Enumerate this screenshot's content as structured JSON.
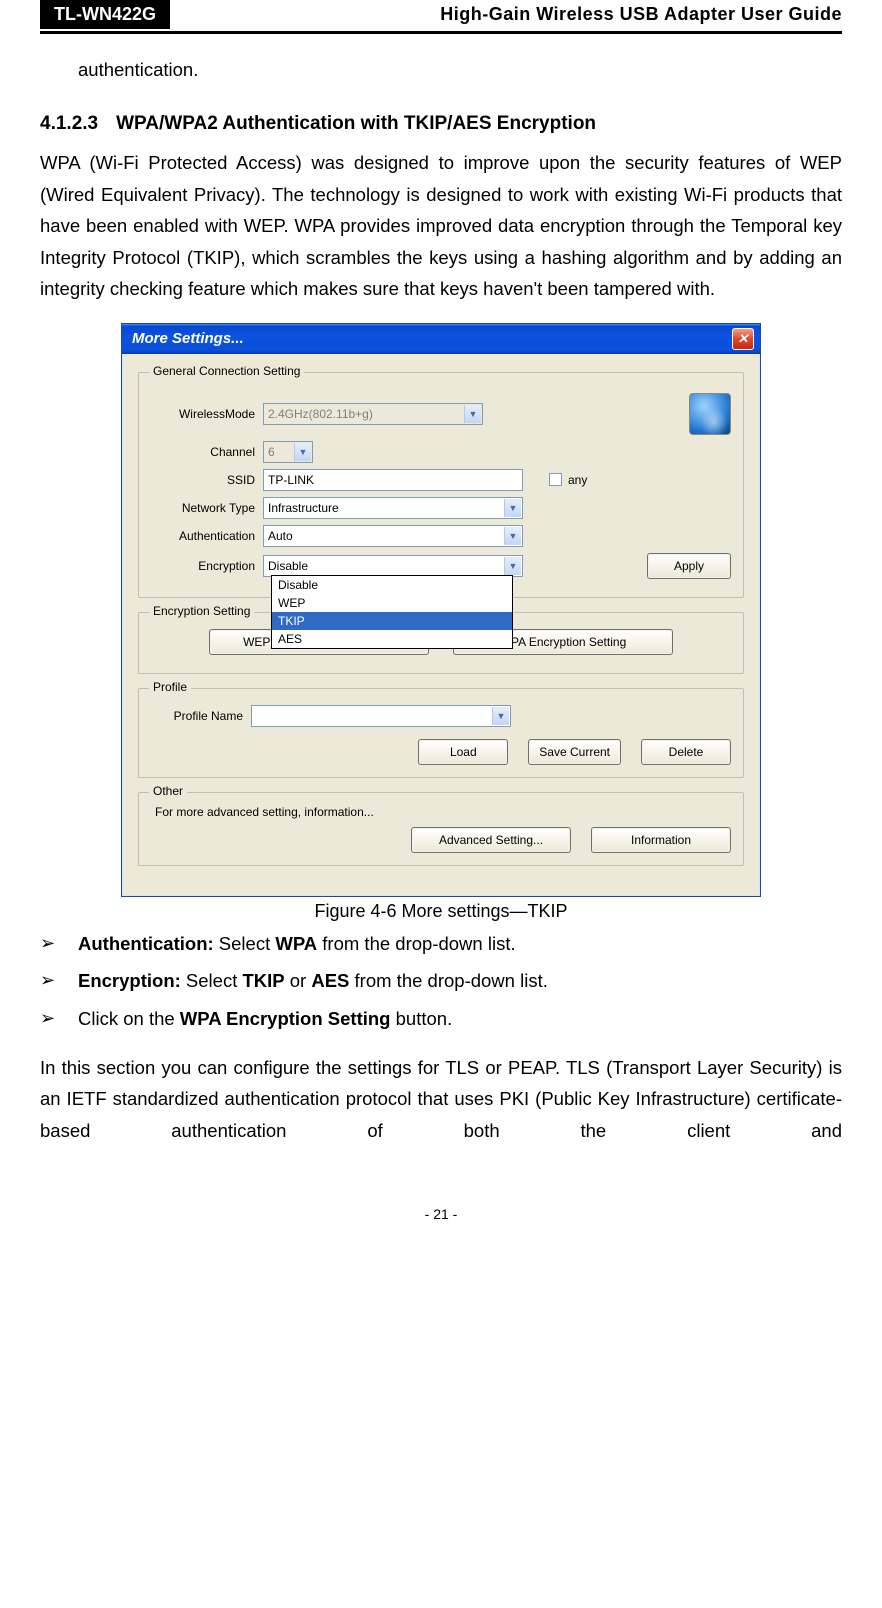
{
  "header": {
    "model": "TL-WN422G",
    "title": "High-Gain Wireless USB Adapter User Guide"
  },
  "intro_trail": "authentication.",
  "section": {
    "number": "4.1.2.3",
    "title": "WPA/WPA2 Authentication with TKIP/AES Encryption"
  },
  "para1": "WPA (Wi-Fi Protected Access) was designed to improve upon the security features of WEP (Wired Equivalent Privacy). The technology is designed to work with existing Wi-Fi products that have been enabled with WEP. WPA provides improved data encryption through the Temporal key Integrity Protocol (TKIP), which scrambles the keys using a hashing algorithm and by adding an integrity checking feature which makes sure that keys haven't been tampered with.",
  "dialog": {
    "title": "More Settings...",
    "close_glyph": "✕",
    "groups": {
      "general": {
        "legend": "General Connection Setting",
        "wireless_mode_label": "WirelessMode",
        "wireless_mode_value": "2.4GHz(802.11b+g)",
        "channel_label": "Channel",
        "channel_value": "6",
        "ssid_label": "SSID",
        "ssid_value": "TP-LINK",
        "any_label": "any",
        "network_type_label": "Network Type",
        "network_type_value": "Infrastructure",
        "authentication_label": "Authentication",
        "authentication_value": "Auto",
        "encryption_label": "Encryption",
        "encryption_value": "Disable",
        "encryption_options": [
          "Disable",
          "WEP",
          "TKIP",
          "AES"
        ],
        "encryption_selected_index": 2,
        "apply_label": "Apply"
      },
      "enc_setting": {
        "legend": "Encryption Setting",
        "wep_btn": "WEP Encryption Key Setting",
        "wpa_btn": "WPA Encryption Setting"
      },
      "profile": {
        "legend": "Profile",
        "name_label": "Profile Name",
        "name_value": "",
        "load": "Load",
        "save": "Save Current",
        "delete": "Delete"
      },
      "other": {
        "legend": "Other",
        "desc": "For more advanced setting, information...",
        "advanced": "Advanced Setting...",
        "info": "Information"
      }
    }
  },
  "figure_caption": "Figure 4-6 More settings—TKIP",
  "bullets": {
    "b1_label": "Authentication:",
    "b1_text": " Select ",
    "b1_bold": "WPA",
    "b1_tail": " from the drop-down list.",
    "b2_label": "Encryption:",
    "b2_text": " Select ",
    "b2_bold1": "TKIP",
    "b2_mid": " or ",
    "b2_bold2": "AES",
    "b2_tail": " from the drop-down list.",
    "b3_pre": "Click on the ",
    "b3_bold": "WPA Encryption Setting",
    "b3_tail": " button."
  },
  "para2": "In this section you can configure the settings for TLS or PEAP. TLS (Transport Layer Security) is an IETF standardized authentication protocol that uses PKI (Public Key Infrastructure) certificate-based authentication of both the client and",
  "page_number": "- 21 -",
  "colors": {
    "xp_title_gradient_top": "#3a93ff",
    "xp_title_gradient_bottom": "#053ca8",
    "xp_body_bg": "#ece9d8",
    "dropdown_highlight": "#316ac5"
  }
}
